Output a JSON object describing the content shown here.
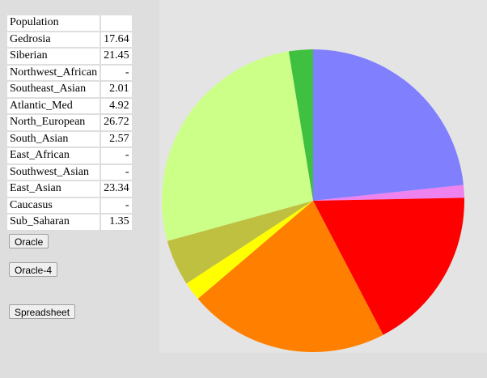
{
  "table": {
    "header": "Population",
    "rows": [
      {
        "label": "Gedrosia",
        "value": "17.64"
      },
      {
        "label": "Siberian",
        "value": "21.45"
      },
      {
        "label": "Northwest_African",
        "value": "-"
      },
      {
        "label": "Southeast_Asian",
        "value": "2.01"
      },
      {
        "label": "Atlantic_Med",
        "value": "4.92"
      },
      {
        "label": "North_European",
        "value": "26.72"
      },
      {
        "label": "South_Asian",
        "value": "2.57"
      },
      {
        "label": "East_African",
        "value": "-"
      },
      {
        "label": "Southwest_Asian",
        "value": "-"
      },
      {
        "label": "East_Asian",
        "value": "23.34"
      },
      {
        "label": "Caucasus",
        "value": "-"
      },
      {
        "label": "Sub_Saharan",
        "value": "1.35"
      }
    ]
  },
  "buttons": {
    "oracle": "Oracle",
    "oracle4": "Oracle-4",
    "spreadsheet": "Spreadsheet"
  },
  "chart_data": {
    "type": "pie",
    "start": "12 o'clock, clockwise",
    "slices": [
      {
        "name": "East_Asian",
        "value": 23.34,
        "color": "#8080ff"
      },
      {
        "name": "Sub_Saharan",
        "value": 1.35,
        "color": "#ee82ee"
      },
      {
        "name": "Gedrosia",
        "value": 17.64,
        "color": "#ff0000"
      },
      {
        "name": "Siberian",
        "value": 21.45,
        "color": "#ff8000"
      },
      {
        "name": "Southeast_Asian",
        "value": 2.01,
        "color": "#ffff00"
      },
      {
        "name": "Atlantic_Med",
        "value": 4.92,
        "color": "#c0c040"
      },
      {
        "name": "North_European",
        "value": 26.72,
        "color": "#ccff88"
      },
      {
        "name": "South_Asian",
        "value": 2.57,
        "color": "#40c040"
      }
    ]
  }
}
